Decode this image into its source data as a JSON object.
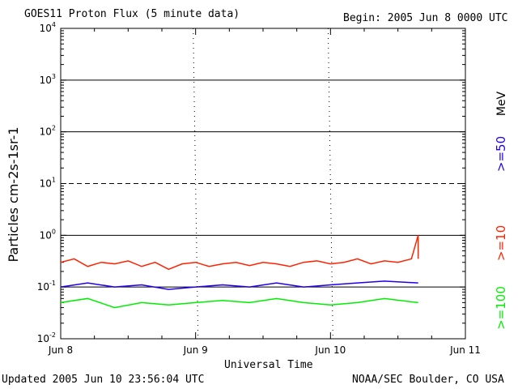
{
  "header": {
    "title": "GOES11 Proton Flux (5 minute data)",
    "begin": "Begin: 2005 Jun 8 0000 UTC"
  },
  "footer": {
    "updated": "Updated 2005 Jun 10 23:56:04 UTC",
    "credit": "NOAA/SEC Boulder, CO USA"
  },
  "chart_data": {
    "type": "line",
    "title": "GOES11 Proton Flux (5 minute data)",
    "xlabel": "Universal Time",
    "ylabel": "Particles cm-2s-1sr-1",
    "yscale": "log",
    "ylim": [
      0.01,
      10000
    ],
    "ytick_labels": [
      "10-2",
      "10-1",
      "100",
      "101",
      "102",
      "103",
      "104"
    ],
    "xlim_days": [
      0,
      3
    ],
    "xtick_labels": [
      "Jun 8",
      "Jun 9",
      "Jun 10",
      "Jun 11"
    ],
    "threshold_lines": [
      {
        "value": 1,
        "style": "solid"
      },
      {
        "value": 10,
        "style": "dashed"
      },
      {
        "value": 100,
        "style": "solid"
      },
      {
        "value": 1000,
        "style": "solid"
      },
      {
        "value": 0.1,
        "style": "solid"
      }
    ],
    "units_label": "MeV",
    "series": [
      {
        "name": ">=10",
        "color": "#ff2200",
        "x": [
          0.0,
          0.1,
          0.2,
          0.3,
          0.4,
          0.5,
          0.6,
          0.7,
          0.8,
          0.9,
          1.0,
          1.1,
          1.2,
          1.3,
          1.4,
          1.5,
          1.6,
          1.7,
          1.8,
          1.9,
          2.0,
          2.1,
          2.2,
          2.3,
          2.4,
          2.5,
          2.6,
          2.65,
          2.65
        ],
        "y": [
          0.3,
          0.35,
          0.25,
          0.3,
          0.28,
          0.32,
          0.25,
          0.3,
          0.22,
          0.28,
          0.3,
          0.25,
          0.28,
          0.3,
          0.26,
          0.3,
          0.28,
          0.25,
          0.3,
          0.32,
          0.28,
          0.3,
          0.35,
          0.28,
          0.32,
          0.3,
          0.35,
          1.0,
          0.35
        ]
      },
      {
        "name": ">=50",
        "color": "#2200ee",
        "x": [
          0.0,
          0.2,
          0.4,
          0.6,
          0.8,
          1.0,
          1.2,
          1.4,
          1.6,
          1.8,
          2.0,
          2.2,
          2.4,
          2.65
        ],
        "y": [
          0.1,
          0.12,
          0.1,
          0.11,
          0.09,
          0.1,
          0.11,
          0.1,
          0.12,
          0.1,
          0.11,
          0.12,
          0.13,
          0.12
        ]
      },
      {
        "name": ">=100",
        "color": "#00ee00",
        "x": [
          0.0,
          0.2,
          0.4,
          0.6,
          0.8,
          1.0,
          1.2,
          1.4,
          1.6,
          1.8,
          2.0,
          2.2,
          2.4,
          2.65
        ],
        "y": [
          0.05,
          0.06,
          0.04,
          0.05,
          0.045,
          0.05,
          0.055,
          0.05,
          0.06,
          0.05,
          0.045,
          0.05,
          0.06,
          0.05
        ]
      }
    ]
  }
}
